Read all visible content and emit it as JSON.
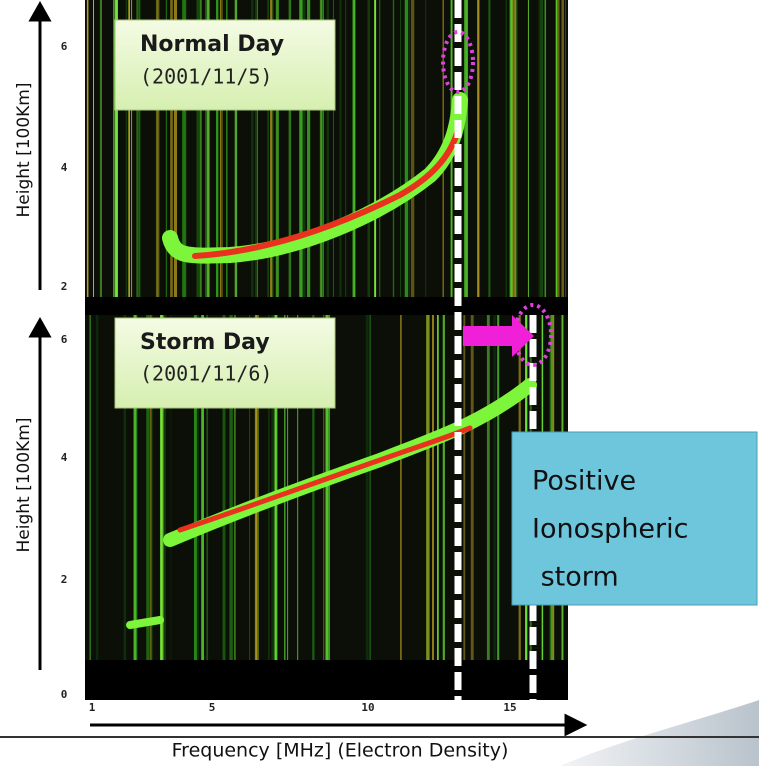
{
  "panels": [
    {
      "title": "Normal Day",
      "date": "(2001/11/5)",
      "y_label": "Height [100Km]",
      "y_ticks": [
        "6",
        "4",
        "2"
      ]
    },
    {
      "title": "Storm Day",
      "date": "(2001/11/6)",
      "y_label": "Height [100Km]",
      "y_ticks": [
        "6",
        "4",
        "2",
        "0"
      ]
    }
  ],
  "x_axis": {
    "label": "Frequency [MHz] (Electron Density)",
    "ticks": [
      "1",
      "5",
      "10",
      "15"
    ]
  },
  "callout": {
    "lines": [
      "Positive",
      "Ionospheric",
      " storm"
    ]
  }
}
